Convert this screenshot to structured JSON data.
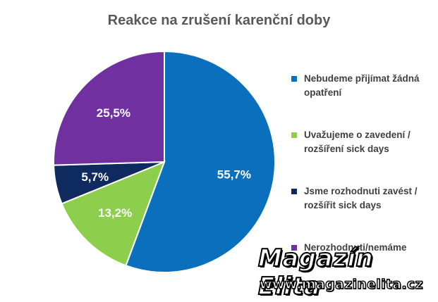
{
  "chart_data": {
    "type": "pie",
    "title": "Reakce na zrušení karenční doby",
    "slices": [
      {
        "label": "Nebudeme přijímat žádná opatření",
        "value": 55.7,
        "display": "55,7%",
        "color": "#0a6fbd"
      },
      {
        "label": "Uvažujeme o zavedení / rozšíření sick days",
        "value": 13.2,
        "display": "13,2%",
        "color": "#8dce4d"
      },
      {
        "label": "Jsme rozhodnuti zavést / rozšířit sick days",
        "value": 5.7,
        "display": "5,7%",
        "color": "#0e2a5e"
      },
      {
        "label": "Nerozhodnuti/nemáme",
        "value": 25.5,
        "display": "25,5%",
        "color": "#7030a0"
      }
    ],
    "legend_position": "right"
  },
  "watermark": {
    "brand": "Magazín Elita",
    "url": "www.magazinelita.cz"
  }
}
